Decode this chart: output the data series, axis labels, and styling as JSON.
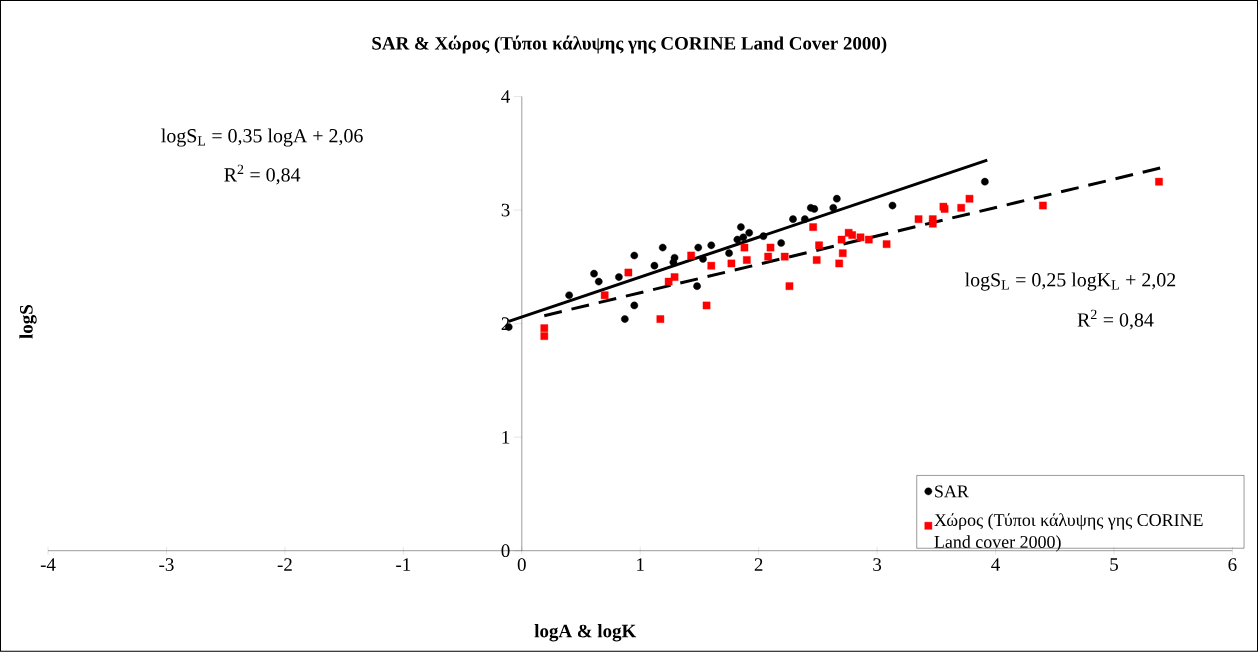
{
  "chart_data": {
    "type": "scatter",
    "title": "SAR & Χώρος (Τύποι κάλυψης γης CORINE Land Cover 2000)",
    "xlabel": "logA & logK",
    "ylabel": "logS",
    "xlim": [
      -4,
      6
    ],
    "ylim": [
      0,
      4
    ],
    "xticks": [
      -4,
      -3,
      -2,
      -1,
      0,
      1,
      2,
      3,
      4,
      5,
      6
    ],
    "yticks": [
      0,
      1,
      2,
      3,
      4
    ],
    "grid": false,
    "legend": "bottom right",
    "annotations": [
      "logS$_{L}$ = 0,35 logA + 2,06",
      "R$^{2}$ = 0,84",
      "logS$_{L}$ = 0,25 logK$_{L}$ + 2,02",
      "R$^{2}$ = 0,84"
    ],
    "series": [
      {
        "name": "SAR",
        "color": "#000000",
        "marker": "circle",
        "x": [
          -0.11,
          0.4,
          0.61,
          0.65,
          0.82,
          0.87,
          0.95,
          0.95,
          1.12,
          1.19,
          1.29,
          1.28,
          1.48,
          1.49,
          1.53,
          1.6,
          1.75,
          1.82,
          1.85,
          1.87,
          1.92,
          2.04,
          2.19,
          2.29,
          2.39,
          2.44,
          2.47,
          2.63,
          2.66,
          3.13,
          3.91
        ],
        "values": [
          1.97,
          2.25,
          2.44,
          2.37,
          2.41,
          2.04,
          2.6,
          2.16,
          2.51,
          2.67,
          2.58,
          2.54,
          2.33,
          2.67,
          2.57,
          2.69,
          2.62,
          2.74,
          2.85,
          2.76,
          2.8,
          2.77,
          2.71,
          2.92,
          2.92,
          3.02,
          3.01,
          3.02,
          3.1,
          3.04,
          3.25
        ]
      },
      {
        "name": "Χώρος (Τύποι κάλυψης γης CORINE Land cover 2000)",
        "color": "#ff0000",
        "marker": "square",
        "x": [
          0.19,
          0.19,
          0.7,
          0.9,
          1.17,
          1.24,
          1.29,
          1.43,
          1.56,
          1.6,
          1.77,
          1.9,
          1.88,
          2.1,
          2.08,
          2.26,
          2.22,
          2.46,
          2.51,
          2.49,
          2.68,
          2.71,
          2.7,
          2.76,
          2.79,
          2.86,
          2.93,
          3.08,
          3.35,
          3.47,
          3.47,
          3.56,
          3.57,
          3.71,
          3.78,
          4.4,
          5.38
        ],
        "values": [
          1.96,
          1.89,
          2.25,
          2.45,
          2.04,
          2.37,
          2.41,
          2.6,
          2.16,
          2.51,
          2.53,
          2.56,
          2.67,
          2.67,
          2.59,
          2.33,
          2.59,
          2.85,
          2.69,
          2.56,
          2.53,
          2.62,
          2.74,
          2.8,
          2.78,
          2.76,
          2.74,
          2.7,
          2.92,
          2.92,
          2.88,
          3.03,
          3.01,
          3.02,
          3.1,
          3.04,
          3.25
        ]
      },
      {
        "type": "line",
        "color": "#000000",
        "marker": "none",
        "line_style": "solid",
        "x": [
          -0.11,
          3.93
        ],
        "values": [
          2.02,
          3.44
        ]
      },
      {
        "type": "line",
        "color": "#000000",
        "marker": "none",
        "line_style": "dashed",
        "x": [
          0.19,
          5.39
        ],
        "values": [
          2.07,
          3.37
        ]
      }
    ]
  }
}
